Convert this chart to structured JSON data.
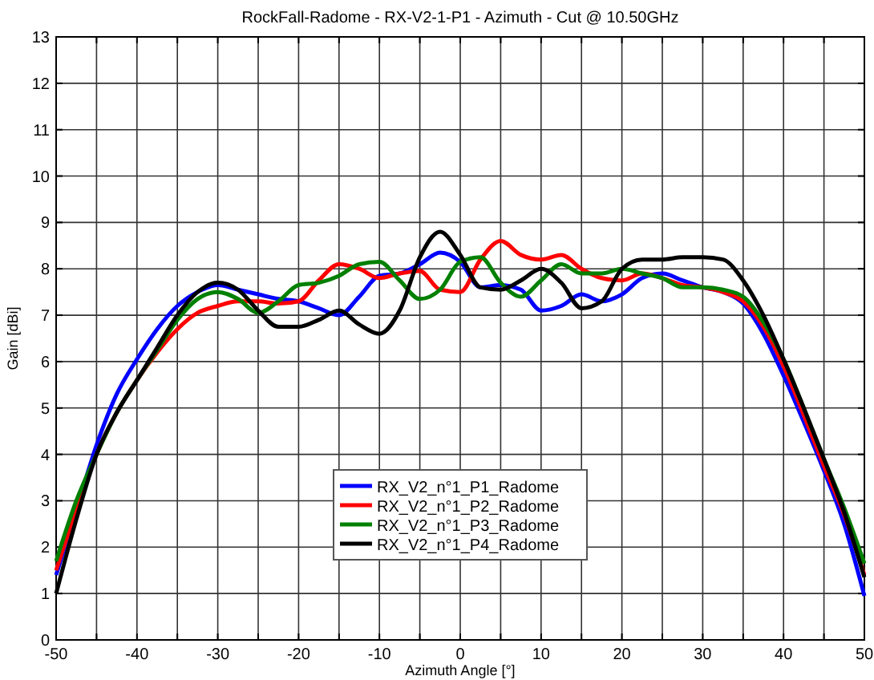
{
  "chart_data": {
    "type": "line",
    "title": "RockFall-Radome - RX-V2-1-P1 - Azimuth - Cut @ 10.50GHz",
    "xlabel": "Azimuth Angle [°]",
    "ylabel": "Gain [dBi]",
    "x": [
      -50,
      -47.5,
      -45,
      -42.5,
      -40,
      -37.5,
      -35,
      -32.5,
      -30,
      -27.5,
      -25,
      -22.5,
      -20,
      -17.5,
      -15,
      -12.5,
      -10,
      -7.5,
      -5,
      -2.5,
      0,
      2.5,
      5,
      7.5,
      10,
      12.5,
      15,
      17.5,
      20,
      22.5,
      25,
      27.5,
      30,
      32.5,
      35,
      37.5,
      40,
      42.5,
      45,
      47.5,
      50
    ],
    "series": [
      {
        "name": "RX_V2_n°1_P1_Radome",
        "color": "#0000ff",
        "values": [
          1.4,
          2.8,
          4.2,
          5.3,
          6.05,
          6.7,
          7.2,
          7.5,
          7.65,
          7.55,
          7.45,
          7.35,
          7.3,
          7.15,
          7.0,
          7.4,
          7.85,
          7.9,
          8.1,
          8.35,
          8.15,
          7.6,
          7.65,
          7.55,
          7.1,
          7.2,
          7.45,
          7.3,
          7.45,
          7.8,
          7.9,
          7.75,
          7.6,
          7.5,
          7.25,
          6.6,
          5.7,
          4.7,
          3.65,
          2.5,
          0.95
        ]
      },
      {
        "name": "RX_V2_n°1_P2_Radome",
        "color": "#ff0000",
        "values": [
          1.5,
          2.8,
          4.0,
          4.9,
          5.6,
          6.2,
          6.7,
          7.05,
          7.2,
          7.3,
          7.3,
          7.25,
          7.3,
          7.75,
          8.1,
          8.0,
          7.8,
          7.9,
          7.95,
          7.55,
          7.5,
          8.2,
          8.6,
          8.3,
          8.2,
          8.3,
          8.0,
          7.8,
          7.75,
          7.9,
          7.8,
          7.65,
          7.6,
          7.5,
          7.3,
          6.75,
          5.9,
          4.85,
          3.75,
          2.7,
          1.4
        ]
      },
      {
        "name": "RX_V2_n°1_P3_Radome",
        "color": "#008000",
        "values": [
          1.7,
          3.0,
          4.0,
          4.9,
          5.6,
          6.25,
          6.9,
          7.35,
          7.5,
          7.35,
          7.05,
          7.3,
          7.65,
          7.7,
          7.85,
          8.1,
          8.15,
          7.75,
          7.35,
          7.55,
          8.15,
          8.25,
          7.7,
          7.4,
          7.75,
          8.1,
          7.9,
          7.9,
          8.0,
          7.9,
          7.8,
          7.6,
          7.6,
          7.55,
          7.4,
          6.85,
          6.05,
          5.0,
          3.9,
          2.85,
          1.65
        ]
      },
      {
        "name": "RX_V2_n°1_P4_Radome",
        "color": "#000000",
        "values": [
          1.0,
          2.6,
          4.0,
          4.9,
          5.6,
          6.3,
          7.0,
          7.5,
          7.7,
          7.55,
          7.1,
          6.75,
          6.75,
          6.9,
          7.1,
          6.8,
          6.6,
          7.1,
          8.25,
          8.8,
          8.3,
          7.6,
          7.55,
          7.75,
          8.0,
          7.7,
          7.15,
          7.3,
          8.0,
          8.2,
          8.2,
          8.25,
          8.25,
          8.2,
          7.75,
          7.0,
          6.05,
          5.0,
          3.9,
          2.75,
          1.35
        ]
      }
    ],
    "xlim": [
      -50,
      50
    ],
    "xticks": [
      -50,
      {
        "value": -45,
        "label": null
      },
      -40,
      {
        "value": -35,
        "label": null
      },
      -30,
      {
        "value": -25,
        "label": null
      },
      -20,
      {
        "value": -15,
        "label": null
      },
      -10,
      {
        "value": -5,
        "label": null
      },
      0,
      {
        "value": 5,
        "label": null
      },
      10,
      {
        "value": 15,
        "label": null
      },
      20,
      {
        "value": 25,
        "label": null
      },
      30,
      {
        "value": 35,
        "label": null
      },
      40,
      {
        "value": 45,
        "label": null
      },
      50
    ],
    "ylim": [
      0,
      13
    ],
    "yticks": [
      0,
      1,
      2,
      3,
      4,
      5,
      6,
      7,
      8,
      9,
      10,
      11,
      12,
      13
    ],
    "grid": true,
    "legend": "bottom",
    "line_style": "solid"
  }
}
